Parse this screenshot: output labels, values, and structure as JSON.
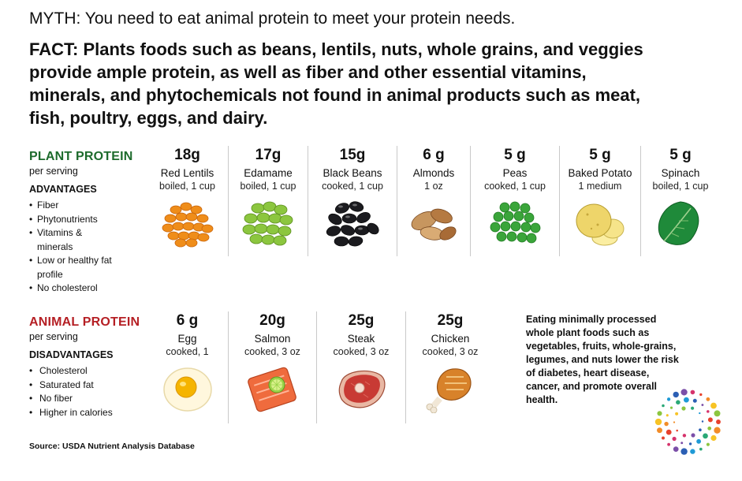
{
  "myth": "MYTH: You need to eat animal protein to meet your protein needs.",
  "fact": "FACT: Plants foods such as beans, lentils, nuts, whole grains, and veggies provide ample protein, as well as fiber and other essential vitamins, minerals, and phytochemicals not found in animal products such as meat, fish, poultry, eggs, and dairy.",
  "colors": {
    "plant_green": "#1d6b2c",
    "animal_red": "#b51f24",
    "divider": "#c9c9c9"
  },
  "plant": {
    "title": "PLANT PROTEIN",
    "subtitle": "per serving",
    "heading": "ADVANTAGES",
    "bullets": [
      "Fiber",
      "Phytonutrients",
      "Vitamins & minerals",
      "Low or healthy fat profile",
      "No cholesterol"
    ],
    "foods": [
      {
        "amount": "18g",
        "name": "Red Lentils",
        "serving": "boiled, 1 cup",
        "icon": "lentils-icon"
      },
      {
        "amount": "17g",
        "name": "Edamame",
        "serving": "boiled,  1 cup",
        "icon": "edamame-icon"
      },
      {
        "amount": "15g",
        "name": "Black Beans",
        "serving": "cooked, 1 cup",
        "icon": "black-beans-icon"
      },
      {
        "amount": "6 g",
        "name": "Almonds",
        "serving": "1 oz",
        "icon": "almonds-icon"
      },
      {
        "amount": "5 g",
        "name": "Peas",
        "serving": "cooked, 1 cup",
        "icon": "peas-icon"
      },
      {
        "amount": "5 g",
        "name": "Baked Potato",
        "serving": "1 medium",
        "icon": "potato-icon"
      },
      {
        "amount": "5 g",
        "name": "Spinach",
        "serving": "boiled, 1 cup",
        "icon": "spinach-icon"
      }
    ]
  },
  "animal": {
    "title": "ANIMAL PROTEIN",
    "subtitle": "per serving",
    "heading": "DISADVANTAGES",
    "bullets": [
      "Cholesterol",
      "Saturated fat",
      "No fiber",
      "Higher in calories"
    ],
    "foods": [
      {
        "amount": "6 g",
        "name": "Egg",
        "serving": "cooked, 1",
        "icon": "egg-icon"
      },
      {
        "amount": "20g",
        "name": "Salmon",
        "serving": "cooked, 3 oz",
        "icon": "salmon-icon"
      },
      {
        "amount": "25g",
        "name": "Steak",
        "serving": "cooked, 3 oz",
        "icon": "steak-icon"
      },
      {
        "amount": "25g",
        "name": "Chicken",
        "serving": "cooked, 3 oz",
        "icon": "chicken-icon"
      }
    ]
  },
  "side_note": "Eating minimally processed whole plant foods such as vegetables, fruits, whole-grains, legumes, and nuts lower the risk of diabetes, heart disease, cancer, and promote overall health.",
  "source": "Source: USDA Nutrient Analysis Database"
}
